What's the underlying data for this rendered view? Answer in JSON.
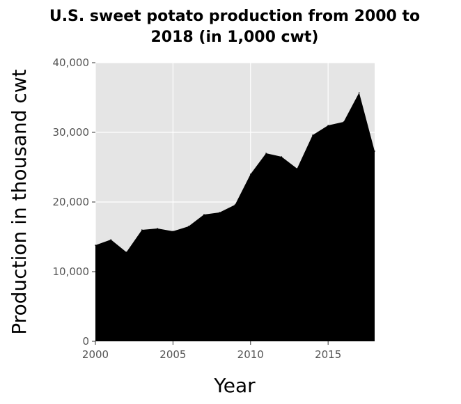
{
  "chart_data": {
    "type": "area",
    "title": "U.S. sweet potato production from 2000 to 2018 (in 1,000 cwt)",
    "title_lines": [
      "U.S. sweet potato production from 2000 to",
      "2018 (in 1,000 cwt)"
    ],
    "xlabel": "Year",
    "ylabel": "Production in thousand cwt",
    "x": [
      2000,
      2001,
      2002,
      2003,
      2004,
      2005,
      2006,
      2007,
      2008,
      2009,
      2010,
      2011,
      2012,
      2013,
      2014,
      2015,
      2016,
      2017,
      2018
    ],
    "values": [
      13800,
      14600,
      12800,
      16000,
      16200,
      15800,
      16500,
      18200,
      18500,
      19600,
      24000,
      27000,
      26500,
      24800,
      29600,
      31000,
      31500,
      35700,
      27300
    ],
    "xlim": [
      2000,
      2018
    ],
    "ylim": [
      0,
      40000
    ],
    "x_ticks": [
      2000,
      2005,
      2010,
      2015
    ],
    "x_tick_labels": [
      "2000",
      "2005",
      "2010",
      "2015"
    ],
    "y_ticks": [
      0,
      10000,
      20000,
      30000,
      40000
    ],
    "y_tick_labels": [
      "0",
      "10,000",
      "20,000",
      "30,000",
      "40,000"
    ],
    "grid": true,
    "colors": {
      "fill": "#000000",
      "panel": "#e5e5e5",
      "grid": "#ffffff"
    }
  }
}
